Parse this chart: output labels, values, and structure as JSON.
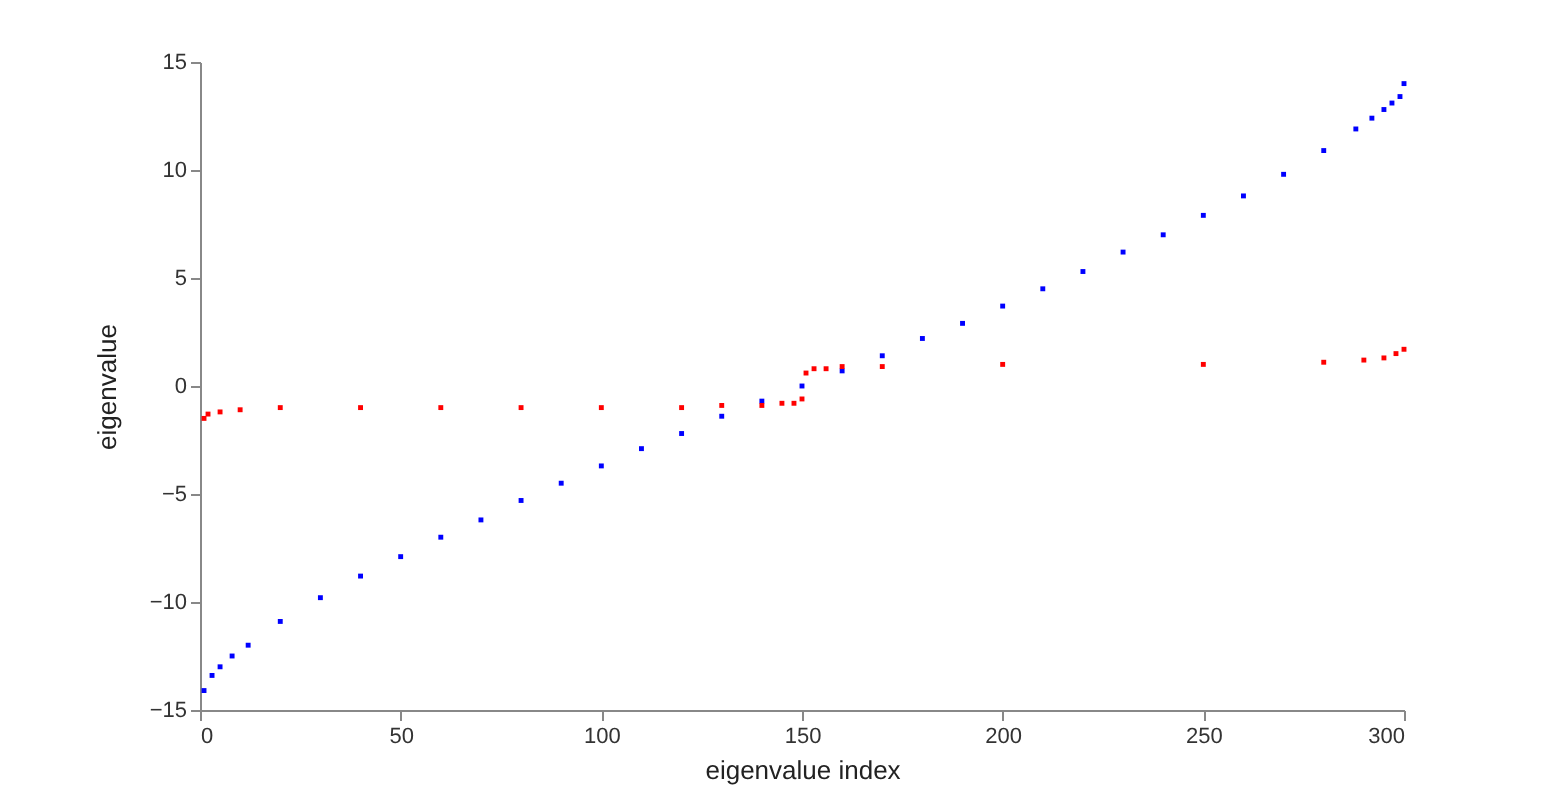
{
  "chart_data": {
    "type": "scatter",
    "xlabel": "eigenvalue index",
    "ylabel": "eigenvalue",
    "marker": "square",
    "grid": false,
    "xlim": [
      0,
      300
    ],
    "xticks": [
      0,
      50,
      100,
      150,
      200,
      250,
      300
    ],
    "ylim": [
      -15,
      15
    ],
    "yticks": [
      -15,
      -10,
      -5,
      0,
      5,
      10,
      15
    ],
    "series": [
      {
        "color": "#0000ff",
        "x": [
          1,
          3,
          5,
          8,
          12,
          20,
          30,
          40,
          50,
          60,
          70,
          80,
          90,
          100,
          110,
          120,
          130,
          140,
          150,
          160,
          170,
          180,
          190,
          200,
          210,
          220,
          230,
          240,
          250,
          260,
          270,
          280,
          288,
          292,
          295,
          297,
          299,
          300
        ],
        "values": [
          -14.1,
          -13.4,
          -13.0,
          -12.5,
          -12.0,
          -10.9,
          -9.8,
          -8.8,
          -7.9,
          -7.0,
          -6.2,
          -5.3,
          -4.5,
          -3.7,
          -2.9,
          -2.2,
          -1.4,
          -0.7,
          0.0,
          0.7,
          1.4,
          2.2,
          2.9,
          3.7,
          4.5,
          5.3,
          6.2,
          7.0,
          7.9,
          8.8,
          9.8,
          10.9,
          11.9,
          12.4,
          12.8,
          13.1,
          13.4,
          14.0
        ]
      },
      {
        "color": "#ff0000",
        "x": [
          1,
          2,
          5,
          10,
          20,
          40,
          60,
          80,
          100,
          120,
          130,
          140,
          145,
          148,
          150,
          151,
          153,
          156,
          160,
          170,
          200,
          250,
          280,
          290,
          295,
          298,
          300
        ],
        "values": [
          -1.5,
          -1.3,
          -1.2,
          -1.1,
          -1.0,
          -1.0,
          -1.0,
          -1.0,
          -1.0,
          -1.0,
          -0.9,
          -0.9,
          -0.8,
          -0.8,
          -0.6,
          0.6,
          0.8,
          0.8,
          0.9,
          0.9,
          1.0,
          1.0,
          1.1,
          1.2,
          1.3,
          1.5,
          1.7
        ]
      }
    ]
  }
}
